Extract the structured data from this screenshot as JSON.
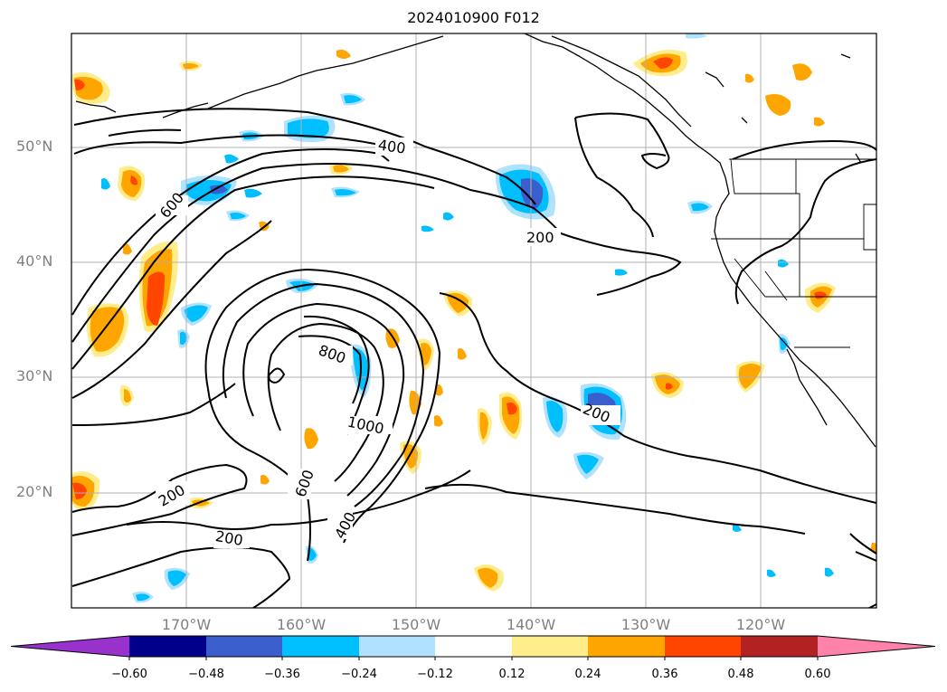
{
  "title": "2024010900 F012",
  "lat_labels": [
    "50°N",
    "40°N",
    "30°N",
    "20°N"
  ],
  "lon_labels": [
    "170°W",
    "160°W",
    "150°W",
    "140°W",
    "130°W",
    "120°W"
  ],
  "contour_labels": {
    "c400_north": "400",
    "c600_west": "600",
    "c200_center": "200",
    "c800": "800",
    "c1000": "1000",
    "c200_east": "200",
    "c600_south": "600",
    "c400_south": "400",
    "c200_sw1": "200",
    "c200_sw2": "200"
  },
  "colorbar": {
    "ticks": [
      "−0.60",
      "−0.48",
      "−0.36",
      "−0.24",
      "−0.12",
      "0.12",
      "0.24",
      "0.36",
      "0.48",
      "0.60"
    ],
    "colors": [
      "#9932cc",
      "#00008b",
      "#3a5fcd",
      "#00bfff",
      "#b0e2ff",
      "#ffffff",
      "#ffec8b",
      "#ffa500",
      "#ff4500",
      "#b22222",
      "#ff82ab"
    ],
    "extend_low_color": "#9932cc",
    "extend_high_color": "#ff82ab"
  },
  "colors": {
    "land_lines": "#000000",
    "grid": "#b0b0b0",
    "contour": "#000000"
  }
}
